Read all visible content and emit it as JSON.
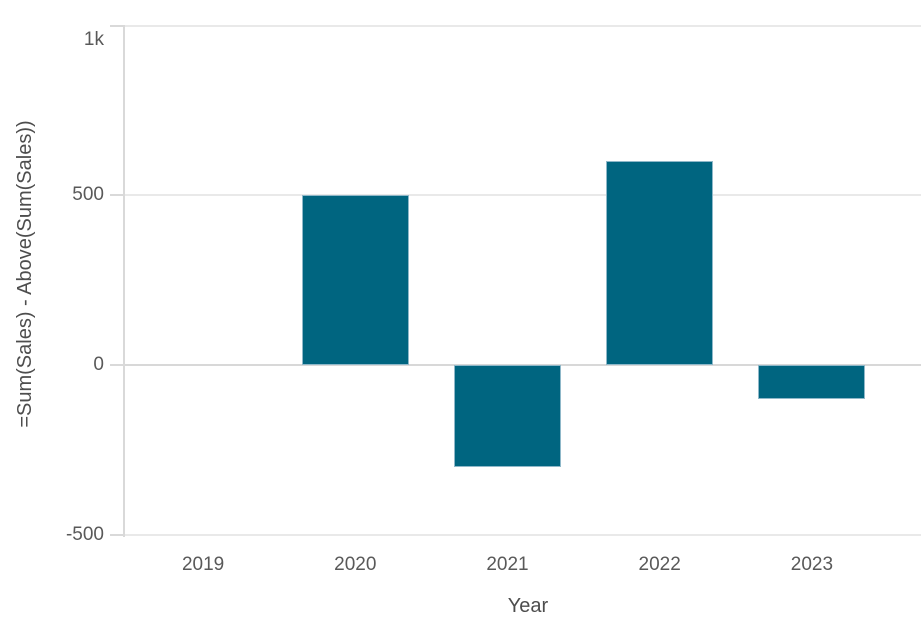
{
  "chart_data": {
    "type": "bar",
    "title": "",
    "categories": [
      "2019",
      "2020",
      "2021",
      "2022",
      "2023"
    ],
    "values": [
      0,
      500,
      -300,
      600,
      -100
    ],
    "xlabel": "Year",
    "ylabel": "=Sum(Sales) - Above(Sum(Sales))",
    "yticks": [
      {
        "label": "1k",
        "value": 1000
      },
      {
        "label": "500",
        "value": 500
      },
      {
        "label": "0",
        "value": 0
      },
      {
        "label": "-500",
        "value": -500
      }
    ],
    "ylim": [
      -500,
      1000
    ],
    "grid": true,
    "legend_position": "none"
  },
  "colors": {
    "bar": "#006580",
    "bar_border": "#8fb8c9",
    "gridline": "#e9e9e9",
    "zero_line": "#d8d8d8",
    "axis_line": "#d9d9d9",
    "tick_text": "#595959",
    "title_text": "#4d4d4d",
    "background": "#ffffff"
  }
}
